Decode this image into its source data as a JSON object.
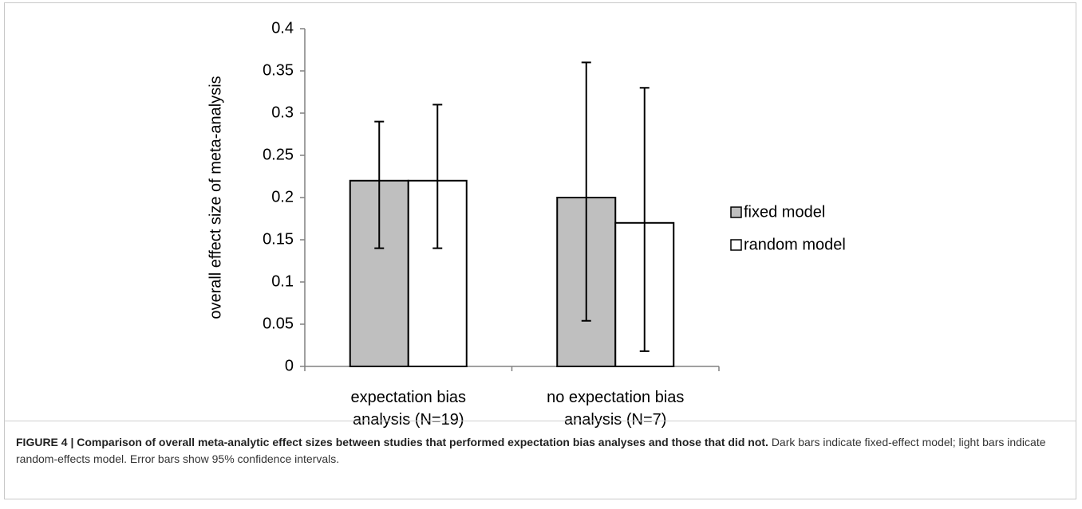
{
  "chart_data": {
    "type": "bar",
    "y_label": "overall effect size of meta-analysis",
    "categories": [
      "expectation bias\nanalysis (N=19)",
      "no expectation bias\nanalysis (N=7)"
    ],
    "series": [
      {
        "name": "fixed model",
        "color": "#bfbfbf",
        "values": [
          0.22,
          0.2
        ],
        "ci_low": [
          0.14,
          0.054
        ],
        "ci_high": [
          0.29,
          0.36
        ]
      },
      {
        "name": "random model",
        "color": "#ffffff",
        "values": [
          0.22,
          0.17
        ],
        "ci_low": [
          0.14,
          0.018
        ],
        "ci_high": [
          0.31,
          0.33
        ]
      }
    ],
    "ylim": [
      0,
      0.4
    ],
    "yticks": [
      0,
      0.05,
      0.1,
      0.15,
      0.2,
      0.25,
      0.3,
      0.35,
      0.4
    ],
    "grid": false,
    "legend": "right"
  },
  "caption": {
    "label": "FIGURE 4 | Comparison of overall meta-analytic effect sizes between studies that performed expectation bias analyses and those that did not.",
    "text": "Dark bars indicate fixed-effect model; light bars indicate random-effects model. Error bars show 95% confidence intervals."
  }
}
